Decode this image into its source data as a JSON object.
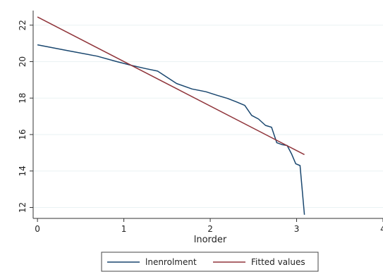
{
  "chart_data": {
    "type": "line",
    "title": "",
    "xlabel": "lnorder",
    "ylabel": "",
    "xlim": [
      -0.05,
      4.0
    ],
    "ylim": [
      11.4,
      22.8
    ],
    "xticks": [
      0,
      1,
      2,
      3,
      4
    ],
    "yticks": [
      12,
      14,
      16,
      18,
      20,
      22
    ],
    "xtick_labels": [
      "0",
      "1",
      "2",
      "3",
      "4"
    ],
    "ytick_labels": [
      "12",
      "14",
      "16",
      "18",
      "20",
      "22"
    ],
    "grid": true,
    "legend_position": "bottom",
    "series": [
      {
        "name": "lnenrolment",
        "color": "#1a476f",
        "x": [
          0,
          0.35,
          0.69,
          0.92,
          1.1,
          1.25,
          1.39,
          1.61,
          1.79,
          1.95,
          2.08,
          2.2,
          2.3,
          2.4,
          2.48,
          2.56,
          2.64,
          2.71,
          2.77,
          2.83,
          2.89,
          2.94,
          2.99,
          3.04,
          3.09
        ],
        "y": [
          20.92,
          20.6,
          20.3,
          20.0,
          19.78,
          19.62,
          19.48,
          18.8,
          18.5,
          18.35,
          18.15,
          17.98,
          17.8,
          17.6,
          17.05,
          16.85,
          16.5,
          16.4,
          15.55,
          15.45,
          15.4,
          14.95,
          14.4,
          14.3,
          11.6
        ]
      },
      {
        "name": "Fitted values",
        "color": "#90353b",
        "x": [
          0,
          3.09
        ],
        "y": [
          22.45,
          14.9
        ]
      }
    ]
  }
}
